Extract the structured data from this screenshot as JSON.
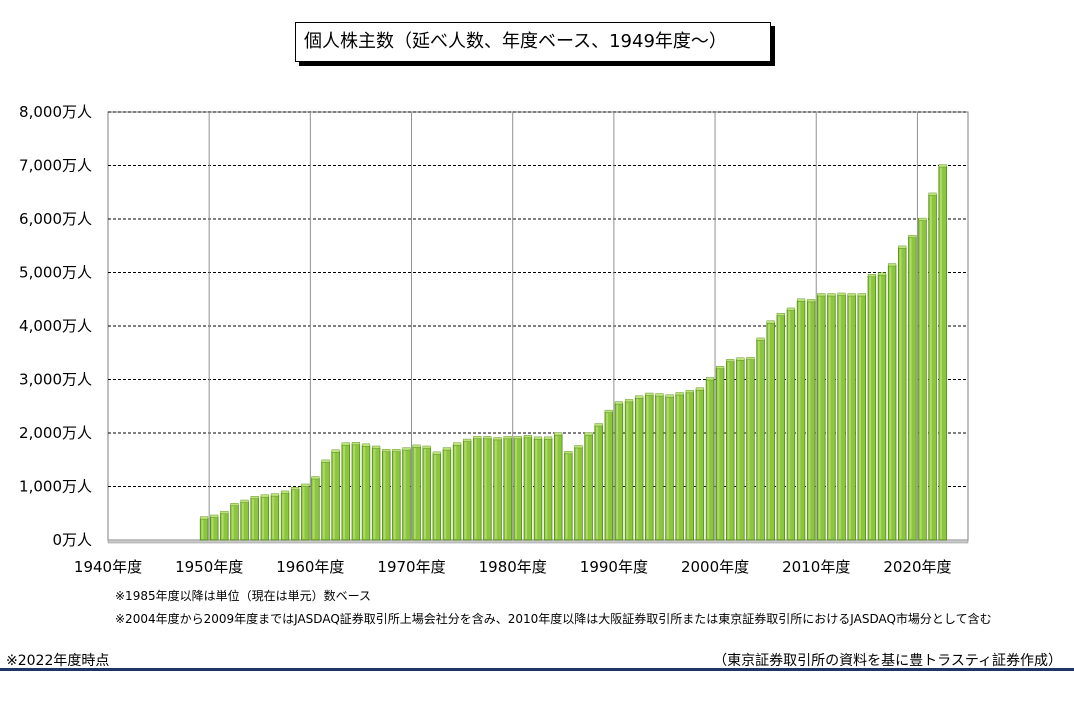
{
  "title": "個人株主数（延べ人数、年度ベース、1949年度～）",
  "notes": [
    "※1985年度以降は単位（現在は単元）数ベース",
    "※2004年度から2009年度まではJASDAQ証券取引所上場会社分を含み、2010年度以降は大阪証券取引所または東京証券取引所におけるJASDAQ市場分として含む"
  ],
  "footer": {
    "left": "※2022年度時点",
    "right": "（東京証券取引所の資料を基に豊トラスティ証券作成）"
  },
  "colors": {
    "bar": "#8cc63f",
    "bar_dark": "#4f8a16",
    "bar_light": "#bde37a",
    "grid": "#000000"
  },
  "chart_data": {
    "type": "bar",
    "title": "個人株主数（延べ人数、年度ベース、1949年度～）",
    "ylabel": "",
    "xlabel": "",
    "x_range": [
      1940,
      2025
    ],
    "ylim": [
      0,
      8000
    ],
    "y_ticks": [
      0,
      1000,
      2000,
      3000,
      4000,
      5000,
      6000,
      7000,
      8000
    ],
    "y_tick_labels": [
      "0万人",
      "1,000万人",
      "2,000万人",
      "3,000万人",
      "4,000万人",
      "5,000万人",
      "6,000万人",
      "7,000万人",
      "8,000万人"
    ],
    "x_ticks": [
      1940,
      1950,
      1960,
      1970,
      1980,
      1990,
      2000,
      2010,
      2020
    ],
    "x_tick_labels": [
      "1940年度",
      "1950年度",
      "1960年度",
      "1970年度",
      "1980年度",
      "1990年度",
      "2000年度",
      "2010年度",
      "2020年度"
    ],
    "unit": "万人",
    "grid": true,
    "categories": [
      1949,
      1950,
      1951,
      1952,
      1953,
      1954,
      1955,
      1956,
      1957,
      1958,
      1959,
      1960,
      1961,
      1962,
      1963,
      1964,
      1965,
      1966,
      1967,
      1968,
      1969,
      1970,
      1971,
      1972,
      1973,
      1974,
      1975,
      1976,
      1977,
      1978,
      1979,
      1980,
      1981,
      1982,
      1983,
      1984,
      1985,
      1986,
      1987,
      1988,
      1989,
      1990,
      1991,
      1992,
      1993,
      1994,
      1995,
      1996,
      1997,
      1998,
      1999,
      2000,
      2001,
      2002,
      2003,
      2004,
      2005,
      2006,
      2007,
      2008,
      2009,
      2010,
      2011,
      2012,
      2013,
      2014,
      2015,
      2016,
      2017,
      2018,
      2019,
      2020,
      2021,
      2022
    ],
    "values": [
      400,
      430,
      500,
      650,
      710,
      780,
      810,
      830,
      880,
      950,
      1010,
      1150,
      1460,
      1650,
      1780,
      1790,
      1760,
      1720,
      1660,
      1660,
      1690,
      1740,
      1720,
      1610,
      1690,
      1780,
      1850,
      1900,
      1900,
      1880,
      1900,
      1900,
      1920,
      1890,
      1890,
      1970,
      1620,
      1730,
      1970,
      2140,
      2390,
      2550,
      2590,
      2660,
      2710,
      2700,
      2680,
      2720,
      2760,
      2810,
      3000,
      3210,
      3340,
      3370,
      3380,
      3740,
      4060,
      4200,
      4300,
      4470,
      4460,
      4570,
      4570,
      4580,
      4570,
      4570,
      4930,
      4960,
      5130,
      5460,
      5660,
      5980,
      6450,
      6980
    ]
  }
}
